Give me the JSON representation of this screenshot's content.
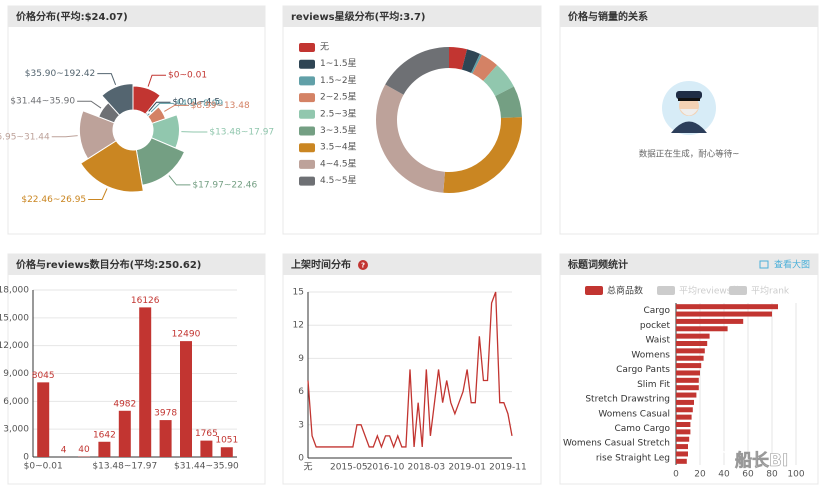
{
  "chart_data": [
    {
      "type": "rose",
      "title": "价格分布(平均:$24.07)",
      "categories": [
        "$0~0.01",
        "$0.01~4.5",
        "$4.5~8.99",
        "$8.99~13.48",
        "$13.48~17.97",
        "$17.97~22.46",
        "$22.46~26.95",
        "$26.95~31.44",
        "$31.44~35.90",
        "$35.90~192.42"
      ],
      "values": [
        20,
        2,
        3,
        12,
        22,
        30,
        35,
        28,
        14,
        22
      ],
      "colors": [
        "#c23531",
        "#2f4554",
        "#61a0a8",
        "#d48265",
        "#91c7ae",
        "#749f83",
        "#ca8622",
        "#bda29a",
        "#6e7074",
        "#546570"
      ]
    },
    {
      "type": "donut",
      "title": "reviews星级分布(平均:3.7)",
      "categories": [
        "无",
        "1~1.5星",
        "1.5~2星",
        "2~2.5星",
        "2.5~3星",
        "3~3.5星",
        "3.5~4星",
        "4~4.5星",
        "4.5~5星"
      ],
      "values": [
        4,
        3,
        0.5,
        4,
        6,
        7,
        27,
        32,
        17
      ],
      "colors": [
        "#c23531",
        "#2f4554",
        "#61a0a8",
        "#d48265",
        "#91c7ae",
        "#749f83",
        "#ca8622",
        "#bda29a",
        "#6e7074"
      ]
    },
    {
      "type": "placeholder",
      "title": "价格与销量的关系",
      "message": "数据正在生成，耐心等待~"
    },
    {
      "type": "bar",
      "title": "价格与reviews数目分布(平均:250.62)",
      "categories": [
        "$0~0.01",
        null,
        null,
        null,
        "$13.48~17.97",
        null,
        null,
        null,
        "$31.44~35.90",
        null
      ],
      "values": [
        8045,
        4,
        40,
        1642,
        4982,
        16126,
        3978,
        12490,
        1765,
        1051
      ],
      "color": "#c23531",
      "ylim": [
        0,
        18000
      ],
      "yticks": [
        0,
        {
          "value": 3000,
          "label": "3,000"
        },
        {
          "value": 6000,
          "label": "6,000"
        },
        {
          "value": 9000,
          "label": "9,000"
        },
        {
          "value": 12000,
          "label": "12,000"
        },
        {
          "value": 15000,
          "label": "15,000"
        },
        {
          "value": 18000,
          "label": "18,000"
        }
      ],
      "grid": true
    },
    {
      "type": "line",
      "title": "上架时间分布",
      "categories": [
        "无",
        null,
        null,
        null,
        null,
        null,
        null,
        null,
        null,
        null,
        "2015-05",
        null,
        null,
        null,
        null,
        null,
        null,
        null,
        null,
        "2016-10",
        null,
        null,
        null,
        null,
        null,
        null,
        null,
        null,
        null,
        "2018-03",
        null,
        null,
        null,
        null,
        null,
        null,
        null,
        null,
        null,
        "2019-01",
        null,
        null,
        null,
        null,
        null,
        null,
        null,
        null,
        null,
        "2019-11",
        null
      ],
      "values": [
        7,
        2,
        1,
        1,
        1,
        1,
        1,
        1,
        1,
        1,
        1,
        1,
        3,
        3,
        2,
        1,
        1,
        2,
        1,
        2,
        2,
        1,
        2,
        1,
        1,
        8,
        1,
        5,
        1,
        8,
        2,
        5,
        8,
        5,
        7,
        5,
        4,
        5,
        6,
        8,
        5,
        5,
        11,
        7,
        7,
        14,
        15,
        5,
        5,
        4,
        2
      ],
      "color": "#c23531",
      "ylim": [
        0,
        15
      ],
      "yticks": [
        0,
        3,
        6,
        9,
        12,
        15
      ],
      "grid": true
    },
    {
      "type": "hbar",
      "title": "标题词频统计",
      "link": "查看大图",
      "categories": [
        "Cargo",
        null,
        "pocket",
        null,
        "Waist",
        null,
        "Womens",
        null,
        "Cargo Pants",
        null,
        "Slim Fit",
        null,
        "Stretch Drawstring",
        null,
        "Womens Casual",
        null,
        "Camo Cargo",
        null,
        "Womens Casual Stretch",
        null,
        "rise Straight Leg",
        null
      ],
      "series": [
        {
          "name": "总商品数",
          "color": "#c23531",
          "values": [
            85,
            80,
            56,
            43,
            28,
            26,
            24,
            23,
            21,
            20,
            19,
            19,
            17,
            15,
            14,
            13,
            12,
            12,
            11,
            10,
            10,
            9
          ]
        },
        {
          "name": "平均reviews数",
          "color": "#cccccc"
        },
        {
          "name": "平均rank",
          "color": "#cccccc"
        }
      ],
      "xlim": [
        0,
        100
      ],
      "xticks": [
        0,
        20,
        40,
        60,
        80,
        100
      ],
      "grid": true
    }
  ],
  "watermark": "船长BI"
}
